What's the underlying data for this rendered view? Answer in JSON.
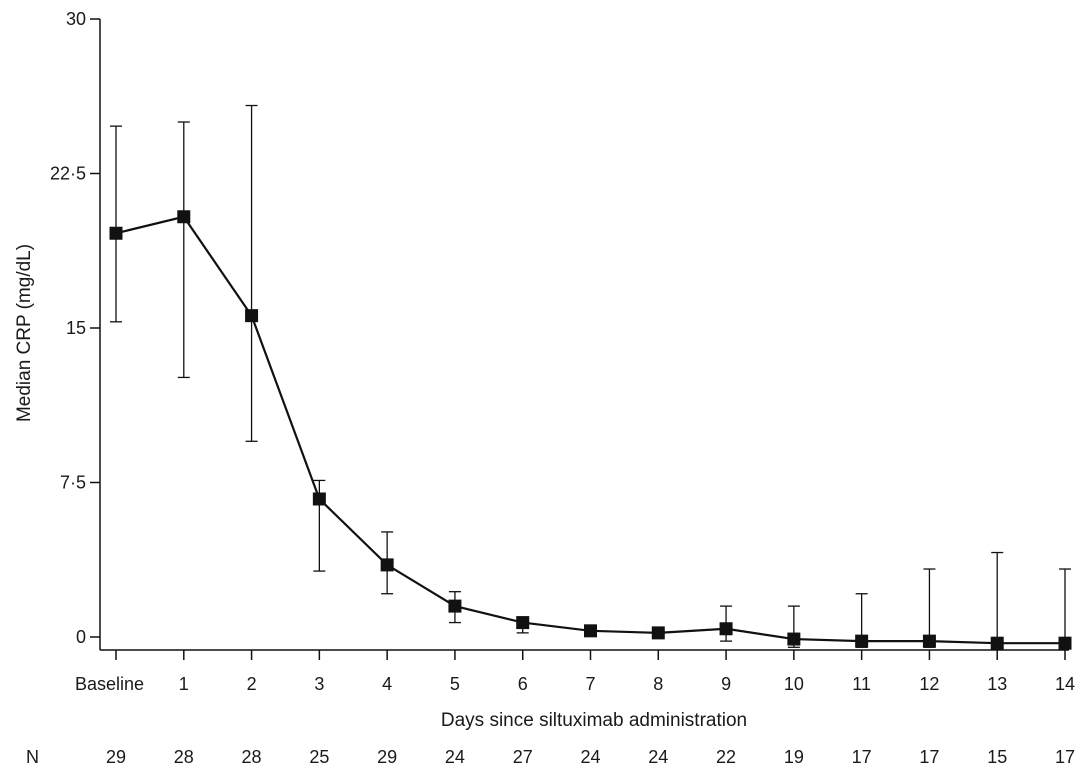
{
  "chart_data": {
    "type": "line",
    "xlabel": "Days since siltuximab administration",
    "ylabel": "Median CRP (mg/dL)",
    "ylim": [
      0,
      30
    ],
    "y_ticks": [
      0,
      7.5,
      15,
      22.5,
      30
    ],
    "y_tick_labels": [
      "0",
      "7·5",
      "15",
      "22·5",
      "30"
    ],
    "categories": [
      "Baseline",
      "1",
      "2",
      "3",
      "4",
      "5",
      "6",
      "7",
      "8",
      "9",
      "10",
      "11",
      "12",
      "13",
      "14"
    ],
    "grid": false,
    "line_color": "#111111",
    "series": [
      {
        "values": [
          19.6,
          20.4,
          15.6,
          6.7,
          3.5,
          1.5,
          0.7,
          0.3,
          0.2,
          0.4,
          -0.1,
          -0.2,
          -0.2,
          -0.3,
          -0.3
        ],
        "error_low": [
          15.3,
          12.6,
          9.5,
          3.2,
          2.1,
          0.7,
          0.2,
          0.1,
          0.05,
          -0.2,
          -0.5,
          -0.5,
          -0.5,
          -0.5,
          -0.5
        ],
        "error_high": [
          24.8,
          25.0,
          25.8,
          7.6,
          5.1,
          2.2,
          0.9,
          0.4,
          0.3,
          1.5,
          1.5,
          2.1,
          3.3,
          4.1,
          3.3
        ]
      }
    ],
    "n_label": "N",
    "n_values": [
      "29",
      "28",
      "28",
      "25",
      "29",
      "24",
      "27",
      "24",
      "24",
      "22",
      "19",
      "17",
      "17",
      "15",
      "17"
    ]
  }
}
